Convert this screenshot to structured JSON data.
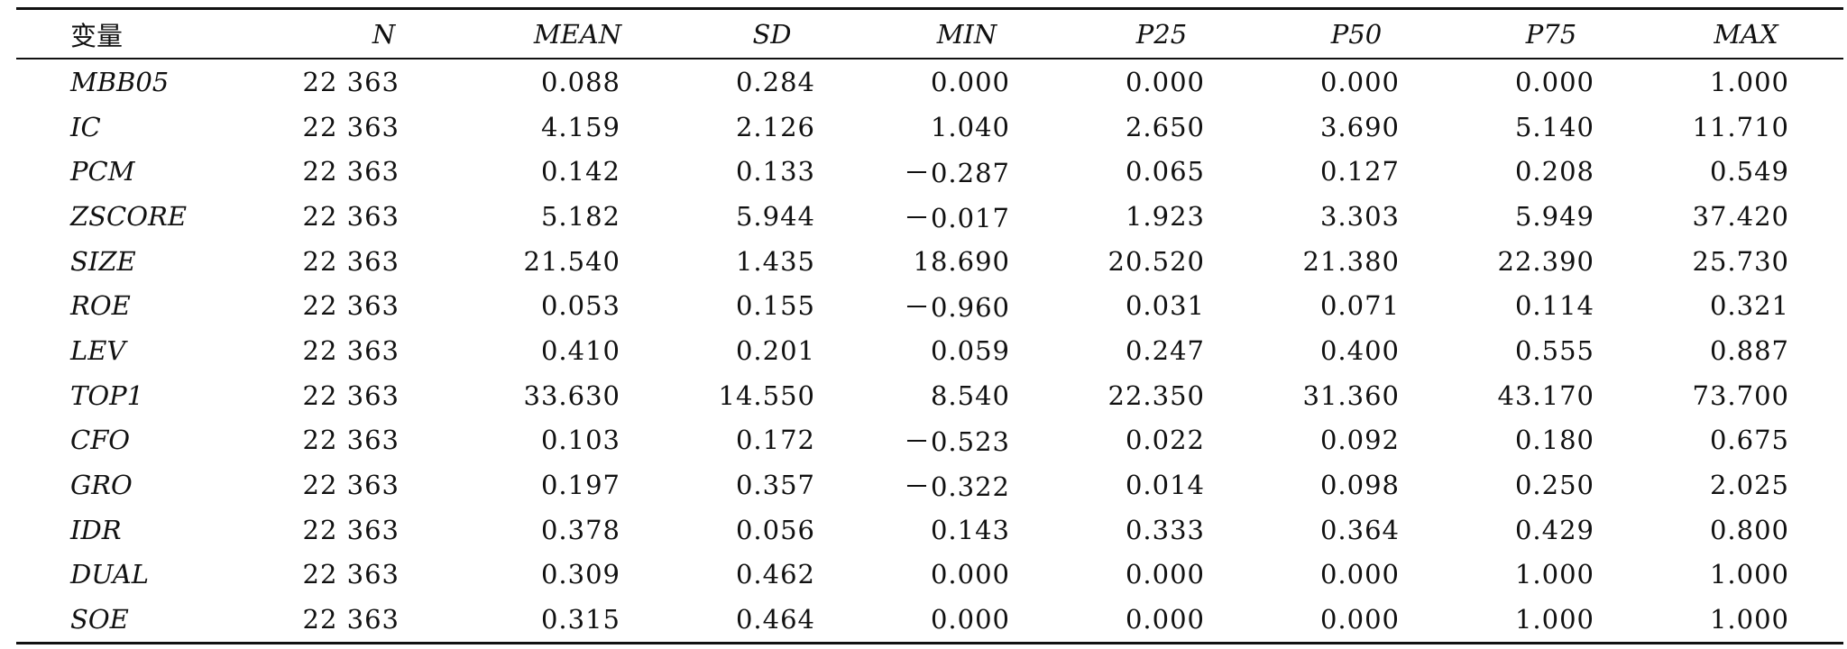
{
  "table": {
    "headers": [
      "变量",
      "N",
      "MEAN",
      "SD",
      "MIN",
      "P25",
      "P50",
      "P75",
      "MAX"
    ],
    "rows": [
      [
        "MBB05",
        "22 363",
        "0.088",
        "0.284",
        "0.000",
        "0.000",
        "0.000",
        "0.000",
        "1.000"
      ],
      [
        "IC",
        "22 363",
        "4.159",
        "2.126",
        "1.040",
        "2.650",
        "3.690",
        "5.140",
        "11.710"
      ],
      [
        "PCM",
        "22 363",
        "0.142",
        "0.133",
        "－0.287",
        "0.065",
        "0.127",
        "0.208",
        "0.549"
      ],
      [
        "ZSCORE",
        "22 363",
        "5.182",
        "5.944",
        "－0.017",
        "1.923",
        "3.303",
        "5.949",
        "37.420"
      ],
      [
        "SIZE",
        "22 363",
        "21.540",
        "1.435",
        "18.690",
        "20.520",
        "21.380",
        "22.390",
        "25.730"
      ],
      [
        "ROE",
        "22 363",
        "0.053",
        "0.155",
        "－0.960",
        "0.031",
        "0.071",
        "0.114",
        "0.321"
      ],
      [
        "LEV",
        "22 363",
        "0.410",
        "0.201",
        "0.059",
        "0.247",
        "0.400",
        "0.555",
        "0.887"
      ],
      [
        "TOP1",
        "22 363",
        "33.630",
        "14.550",
        "8.540",
        "22.350",
        "31.360",
        "43.170",
        "73.700"
      ],
      [
        "CFO",
        "22 363",
        "0.103",
        "0.172",
        "－0.523",
        "0.022",
        "0.092",
        "0.180",
        "0.675"
      ],
      [
        "GRO",
        "22 363",
        "0.197",
        "0.357",
        "－0.322",
        "0.014",
        "0.098",
        "0.250",
        "2.025"
      ],
      [
        "IDR",
        "22 363",
        "0.378",
        "0.056",
        "0.143",
        "0.333",
        "0.364",
        "0.429",
        "0.800"
      ],
      [
        "DUAL",
        "22 363",
        "0.309",
        "0.462",
        "0.000",
        "0.000",
        "0.000",
        "1.000",
        "1.000"
      ],
      [
        "SOE",
        "22 363",
        "0.315",
        "0.464",
        "0.000",
        "0.000",
        "0.000",
        "1.000",
        "1.000"
      ]
    ]
  }
}
